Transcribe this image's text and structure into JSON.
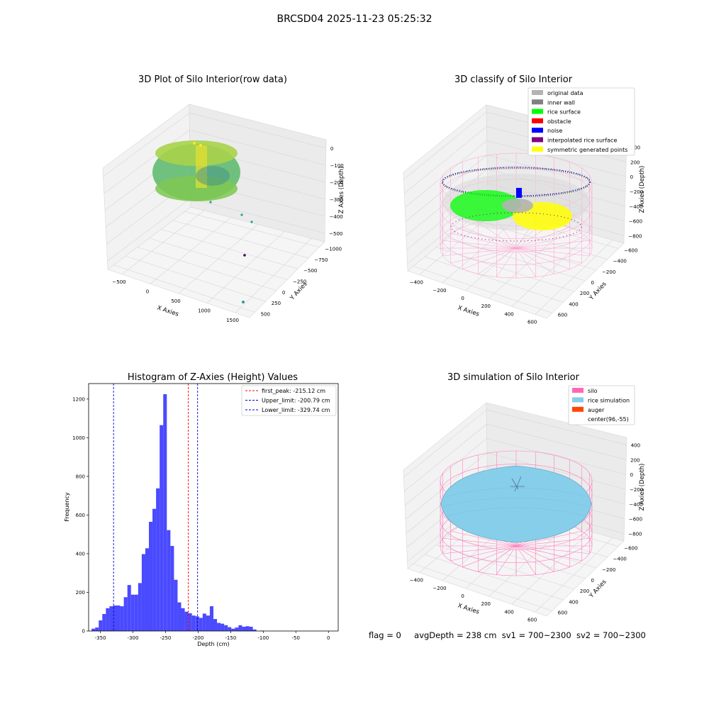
{
  "figure": {
    "suptitle": "BRCSD04 2025-11-23 05:25:32"
  },
  "chart_data": [
    {
      "type": "scatter",
      "projection": "3d",
      "title": "3D Plot of Silo Interior(row data)",
      "xlabel": "X Axies",
      "ylabel": "Y Axies",
      "zlabel": "Z Axies (Depth)",
      "xticks": [
        "−500",
        "0",
        "500",
        "1000",
        "1500"
      ],
      "yticks": [
        "500",
        "250",
        "0",
        "−250",
        "−500",
        "−750",
        "−1000"
      ],
      "zticks": [
        "0",
        "−100",
        "−200",
        "−300",
        "−400",
        "−500"
      ],
      "colormap": "viridis",
      "outlier_colors": [
        "#2a9d8f",
        "#2a9d8f",
        "#2a9d8f",
        "#440154"
      ]
    },
    {
      "type": "scatter",
      "projection": "3d",
      "title": "3D classify of Silo Interior",
      "xlabel": "X Axies",
      "ylabel": "Y Axies",
      "zlabel": "Z Axies (Depth)",
      "xticks": [
        "−400",
        "−200",
        "0",
        "200",
        "400",
        "600"
      ],
      "yticks": [
        "600",
        "400",
        "200",
        "0",
        "−200",
        "−400",
        "−600"
      ],
      "zticks": [
        "400",
        "200",
        "0",
        "−200",
        "−400",
        "−600",
        "−800"
      ],
      "legend_position": "top-right",
      "legend": [
        {
          "label": "original data",
          "color": "#b3b3b3"
        },
        {
          "label": "inner wall",
          "color": "#808080"
        },
        {
          "label": "rice surface",
          "color": "#00ff00"
        },
        {
          "label": "obstacle",
          "color": "#ff0000"
        },
        {
          "label": "noise",
          "color": "#0000ff"
        },
        {
          "label": "interpolated rice surface",
          "color": "#800080"
        },
        {
          "label": "symmetric generated points",
          "color": "#ffff00"
        }
      ]
    },
    {
      "type": "bar",
      "title": "Histogram of Z-Axies (Height) Values",
      "xlabel": "Depth (cm)",
      "ylabel": "Frequency",
      "bar_color": "#4a4aff",
      "xlim": [
        -368,
        15
      ],
      "ylim": [
        0,
        1280
      ],
      "xticks": [
        -350,
        -300,
        -250,
        -200,
        -150,
        -100,
        -50,
        0
      ],
      "yticks": [
        0,
        200,
        400,
        600,
        800,
        1000,
        1200
      ],
      "bin_start": -363.5,
      "bin_width": 5.5,
      "values": [
        12,
        18,
        55,
        88,
        118,
        128,
        132,
        132,
        128,
        175,
        238,
        188,
        188,
        248,
        398,
        428,
        565,
        632,
        738,
        1065,
        1225,
        522,
        440,
        265,
        148,
        118,
        100,
        92,
        80,
        76,
        68,
        90,
        80,
        128,
        62,
        42,
        38,
        30,
        20,
        12,
        18,
        30,
        22,
        25,
        22,
        8,
        0,
        2
      ],
      "vlines": [
        {
          "x": -215.12,
          "color": "#ff0000",
          "label": "first_peak: -215.12 cm"
        },
        {
          "x": -200.79,
          "color": "#0000cc",
          "label": "Upper_limit: -200.79 cm"
        },
        {
          "x": -329.74,
          "color": "#0000cc",
          "label": "Lower_limit: -329.74 cm"
        }
      ],
      "legend_position": "top-right"
    },
    {
      "type": "surface",
      "projection": "3d",
      "title": "3D simulation of Silo Interior",
      "xlabel": "X Axies",
      "ylabel": "Y Axies",
      "zlabel": "Z Axies (Depth)",
      "xticks": [
        "−400",
        "−200",
        "0",
        "200",
        "400",
        "600"
      ],
      "yticks": [
        "600",
        "400",
        "200",
        "0",
        "−200",
        "−400",
        "−600"
      ],
      "zticks": [
        "400",
        "200",
        "0",
        "−200",
        "−400",
        "−600",
        "−800"
      ],
      "legend_position": "top-right",
      "legend": [
        {
          "label": "silo",
          "color": "#ff69b4"
        },
        {
          "label": "rice simulation",
          "color": "#87ceeb"
        },
        {
          "label": "auger",
          "color": "#ff4500"
        },
        {
          "label": "center(96,-55)",
          "color": ""
        }
      ]
    }
  ],
  "footer": {
    "flag": "flag = 0",
    "avg_depth": "avgDepth = 238 cm",
    "sv1": "sv1 = 700~2300",
    "sv2": "sv2 = 700~2300"
  }
}
